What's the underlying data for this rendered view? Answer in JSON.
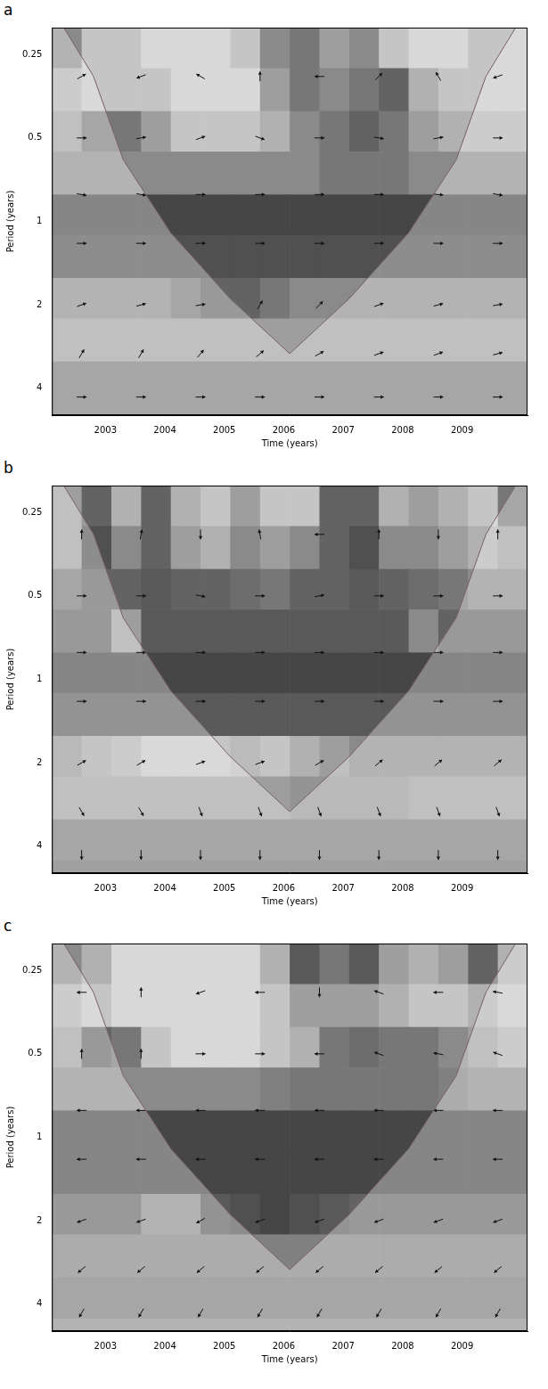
{
  "chart_data": [
    {
      "type": "heatmap",
      "panel": "a",
      "x_label": "Time (years)",
      "y_label": "Period (years)",
      "xlim": [
        2002.1,
        2010.1
      ],
      "xticks": [
        2003,
        2004,
        2005,
        2006,
        2007,
        2008,
        2009
      ],
      "ylim": [
        0.2,
        5
      ],
      "yticks": [
        0.25,
        0.5,
        1,
        2,
        4
      ],
      "log": "y",
      "grid": false,
      "time_edges": [
        2002.1,
        2002.6,
        2003.1,
        2003.6,
        2004.1,
        2004.6,
        2005.1,
        2005.6,
        2006.1,
        2006.6,
        2007.1,
        2007.6,
        2008.1,
        2008.6,
        2009.1,
        2009.6,
        2010.1
      ],
      "period_edges": [
        0.2,
        0.28,
        0.4,
        0.56,
        0.8,
        1.12,
        1.6,
        2.24,
        3.2,
        4.5,
        5
      ],
      "cells": [
        [
          0.6,
          0.3,
          0.3,
          0.2,
          0.2,
          0.2,
          0.3,
          0.6,
          0.7,
          0.5,
          0.6,
          0.3,
          0.2,
          0.2,
          0.3,
          0.3
        ],
        [
          0.4,
          0.3,
          0.3,
          0.3,
          0.2,
          0.2,
          0.2,
          0.5,
          0.7,
          0.6,
          0.7,
          0.8,
          0.4,
          0.3,
          0.3,
          0.3
        ],
        [
          0.5,
          0.7,
          0.7,
          0.5,
          0.3,
          0.3,
          0.3,
          0.4,
          0.6,
          0.7,
          0.8,
          0.7,
          0.5,
          0.4,
          0.4,
          0.4
        ],
        [
          0.6,
          0.6,
          0.6,
          0.6,
          0.6,
          0.6,
          0.6,
          0.6,
          0.6,
          0.7,
          0.7,
          0.7,
          0.6,
          0.6,
          0.6,
          0.6
        ],
        [
          0.95,
          0.95,
          0.95,
          0.95,
          0.95,
          0.95,
          0.95,
          0.95,
          0.95,
          0.95,
          0.95,
          0.95,
          0.95,
          0.95,
          0.95,
          0.95
        ],
        [
          0.9,
          0.9,
          0.9,
          0.9,
          0.9,
          0.9,
          0.9,
          0.9,
          0.9,
          0.9,
          0.9,
          0.9,
          0.9,
          0.9,
          0.9,
          0.9
        ],
        [
          0.6,
          0.6,
          0.6,
          0.6,
          0.7,
          0.8,
          0.8,
          0.7,
          0.6,
          0.6,
          0.6,
          0.6,
          0.6,
          0.6,
          0.6,
          0.6
        ],
        [
          0.5,
          0.5,
          0.5,
          0.5,
          0.5,
          0.5,
          0.5,
          0.5,
          0.5,
          0.5,
          0.5,
          0.5,
          0.5,
          0.5,
          0.5,
          0.5
        ],
        [
          0.7,
          0.7,
          0.7,
          0.7,
          0.7,
          0.7,
          0.7,
          0.7,
          0.7,
          0.7,
          0.7,
          0.7,
          0.7,
          0.7,
          0.7,
          0.7
        ],
        [
          0.7,
          0.7,
          0.7,
          0.7,
          0.7,
          0.7,
          0.7,
          0.7,
          0.7,
          0.7,
          0.7,
          0.7,
          0.7,
          0.7,
          0.7,
          0.7
        ]
      ],
      "arrows": {
        "x": [
          2002.6,
          2003.6,
          2004.6,
          2005.6,
          2006.6,
          2007.6,
          2008.6,
          2009.6
        ],
        "period": [
          0.3,
          0.5,
          0.8,
          1.2,
          2,
          3,
          4.3
        ],
        "angle": [
          [
            30,
            200,
            150,
            90,
            180,
            45,
            120,
            200
          ],
          [
            0,
            10,
            20,
            340,
            0,
            350,
            10,
            0
          ],
          [
            350,
            350,
            0,
            0,
            0,
            0,
            355,
            350
          ],
          [
            0,
            0,
            0,
            0,
            0,
            0,
            0,
            0
          ],
          [
            20,
            15,
            10,
            60,
            45,
            20,
            15,
            10
          ],
          [
            60,
            60,
            50,
            40,
            30,
            20,
            20,
            15
          ],
          [
            0,
            0,
            0,
            0,
            0,
            0,
            0,
            0
          ]
        ]
      },
      "cone_of_influence": {
        "x": [
          2002.3,
          2002.8,
          2003.3,
          2004.1,
          2005.1,
          2006.1,
          2007.1,
          2008.1,
          2008.9,
          2009.4,
          2009.9
        ],
        "period": [
          0.2,
          0.3,
          0.6,
          1.1,
          1.9,
          3.0,
          1.9,
          1.1,
          0.6,
          0.3,
          0.2
        ]
      }
    },
    {
      "type": "heatmap",
      "panel": "b",
      "x_label": "Time (years)",
      "y_label": "Period (years)",
      "xlim": [
        2002.1,
        2010.1
      ],
      "xticks": [
        2003,
        2004,
        2005,
        2006,
        2007,
        2008,
        2009
      ],
      "ylim": [
        0.2,
        5
      ],
      "yticks": [
        0.25,
        0.5,
        1,
        2,
        4
      ],
      "log": "y",
      "grid": false,
      "time_edges": [
        2002.1,
        2002.6,
        2003.1,
        2003.6,
        2004.1,
        2004.6,
        2005.1,
        2005.6,
        2006.1,
        2006.6,
        2007.1,
        2007.6,
        2008.1,
        2008.6,
        2009.1,
        2009.6,
        2010.1
      ],
      "period_edges": [
        0.2,
        0.28,
        0.4,
        0.56,
        0.8,
        1.12,
        1.6,
        2.24,
        3.2,
        4.5,
        5
      ],
      "cells": [
        [
          0.5,
          0.8,
          0.4,
          0.8,
          0.4,
          0.3,
          0.5,
          0.3,
          0.3,
          0.8,
          0.8,
          0.4,
          0.5,
          0.4,
          0.3,
          0.7
        ],
        [
          0.5,
          0.9,
          0.6,
          0.8,
          0.5,
          0.4,
          0.6,
          0.5,
          0.6,
          0.8,
          0.9,
          0.6,
          0.6,
          0.5,
          0.4,
          0.5
        ],
        [
          0.7,
          0.8,
          0.8,
          0.85,
          0.8,
          0.8,
          0.75,
          0.7,
          0.8,
          0.8,
          0.85,
          0.8,
          0.75,
          0.7,
          0.6,
          0.6
        ],
        [
          0.8,
          0.8,
          0.5,
          0.85,
          0.85,
          0.85,
          0.85,
          0.85,
          0.85,
          0.85,
          0.85,
          0.85,
          0.6,
          0.8,
          0.8,
          0.8
        ],
        [
          0.95,
          0.95,
          0.95,
          0.95,
          0.95,
          0.95,
          0.95,
          0.95,
          0.95,
          0.95,
          0.95,
          0.95,
          0.95,
          0.95,
          0.95,
          0.95
        ],
        [
          0.85,
          0.85,
          0.85,
          0.85,
          0.85,
          0.85,
          0.85,
          0.85,
          0.85,
          0.85,
          0.85,
          0.85,
          0.85,
          0.85,
          0.85,
          0.85
        ],
        [
          0.55,
          0.45,
          0.4,
          0.3,
          0.3,
          0.3,
          0.35,
          0.3,
          0.4,
          0.5,
          0.6,
          0.6,
          0.6,
          0.6,
          0.6,
          0.6
        ],
        [
          0.5,
          0.5,
          0.5,
          0.5,
          0.5,
          0.5,
          0.5,
          0.5,
          0.55,
          0.55,
          0.55,
          0.55,
          0.5,
          0.5,
          0.5,
          0.5
        ],
        [
          0.7,
          0.7,
          0.7,
          0.7,
          0.7,
          0.7,
          0.7,
          0.7,
          0.7,
          0.7,
          0.7,
          0.7,
          0.7,
          0.7,
          0.7,
          0.7
        ],
        [
          0.75,
          0.75,
          0.75,
          0.75,
          0.75,
          0.75,
          0.75,
          0.75,
          0.75,
          0.75,
          0.75,
          0.75,
          0.75,
          0.75,
          0.75,
          0.75
        ]
      ],
      "arrows": {
        "x": [
          2002.6,
          2003.6,
          2004.6,
          2005.6,
          2006.6,
          2007.6,
          2008.6,
          2009.6
        ],
        "period": [
          0.3,
          0.5,
          0.8,
          1.2,
          2,
          3,
          4.3
        ],
        "angle": [
          [
            90,
            80,
            270,
            100,
            180,
            90,
            270,
            90
          ],
          [
            0,
            0,
            350,
            0,
            10,
            0,
            0,
            0
          ],
          [
            0,
            0,
            0,
            0,
            0,
            0,
            0,
            0
          ],
          [
            0,
            0,
            0,
            0,
            0,
            0,
            0,
            0
          ],
          [
            30,
            30,
            20,
            20,
            30,
            40,
            40,
            40
          ],
          [
            300,
            300,
            290,
            290,
            290,
            290,
            290,
            290
          ],
          [
            270,
            270,
            270,
            270,
            270,
            270,
            270,
            270
          ]
        ]
      },
      "cone_of_influence": {
        "x": [
          2002.3,
          2002.8,
          2003.3,
          2004.1,
          2005.1,
          2006.1,
          2007.1,
          2008.1,
          2008.9,
          2009.4,
          2009.9
        ],
        "period": [
          0.2,
          0.3,
          0.6,
          1.1,
          1.9,
          3.0,
          1.9,
          1.1,
          0.6,
          0.3,
          0.2
        ]
      }
    },
    {
      "type": "heatmap",
      "panel": "c",
      "x_label": "Time (years)",
      "y_label": "Period (years)",
      "xlim": [
        2002.1,
        2010.1
      ],
      "xticks": [
        2003,
        2004,
        2005,
        2006,
        2007,
        2008,
        2009
      ],
      "ylim": [
        0.2,
        5
      ],
      "yticks": [
        0.25,
        0.5,
        1,
        2,
        4
      ],
      "log": "y",
      "grid": false,
      "time_edges": [
        2002.1,
        2002.6,
        2003.1,
        2003.6,
        2004.1,
        2004.6,
        2005.1,
        2005.6,
        2006.1,
        2006.6,
        2007.1,
        2007.6,
        2008.1,
        2008.6,
        2009.1,
        2009.6,
        2010.1
      ],
      "period_edges": [
        0.2,
        0.28,
        0.4,
        0.56,
        0.8,
        1.12,
        1.6,
        2.24,
        3.2,
        4.5,
        5
      ],
      "cells": [
        [
          0.6,
          0.4,
          0.2,
          0.2,
          0.2,
          0.2,
          0.2,
          0.4,
          0.85,
          0.7,
          0.85,
          0.5,
          0.4,
          0.5,
          0.8,
          0.4
        ],
        [
          0.4,
          0.3,
          0.2,
          0.2,
          0.2,
          0.2,
          0.2,
          0.3,
          0.5,
          0.5,
          0.5,
          0.4,
          0.3,
          0.3,
          0.4,
          0.3
        ],
        [
          0.5,
          0.8,
          0.7,
          0.3,
          0.2,
          0.2,
          0.2,
          0.3,
          0.4,
          0.7,
          0.75,
          0.7,
          0.7,
          0.6,
          0.5,
          0.4
        ],
        [
          0.6,
          0.6,
          0.6,
          0.6,
          0.6,
          0.6,
          0.6,
          0.65,
          0.7,
          0.7,
          0.7,
          0.7,
          0.7,
          0.65,
          0.6,
          0.6
        ],
        [
          0.95,
          0.95,
          0.95,
          0.95,
          0.95,
          0.95,
          0.95,
          0.95,
          0.95,
          0.95,
          0.95,
          0.95,
          0.95,
          0.95,
          0.95,
          0.95
        ],
        [
          0.95,
          0.95,
          0.95,
          0.95,
          0.95,
          0.95,
          0.95,
          0.95,
          0.95,
          0.95,
          0.95,
          0.95,
          0.95,
          0.95,
          0.95,
          0.95
        ],
        [
          0.8,
          0.8,
          0.8,
          0.6,
          0.6,
          0.85,
          0.9,
          0.95,
          0.9,
          0.85,
          0.8,
          0.8,
          0.8,
          0.8,
          0.8,
          0.8
        ],
        [
          0.65,
          0.65,
          0.65,
          0.65,
          0.65,
          0.65,
          0.65,
          0.65,
          0.65,
          0.65,
          0.65,
          0.65,
          0.65,
          0.65,
          0.65,
          0.65
        ],
        [
          0.7,
          0.7,
          0.7,
          0.7,
          0.7,
          0.7,
          0.7,
          0.7,
          0.7,
          0.7,
          0.7,
          0.7,
          0.7,
          0.7,
          0.7,
          0.7
        ],
        [
          0.6,
          0.6,
          0.6,
          0.6,
          0.6,
          0.6,
          0.6,
          0.6,
          0.6,
          0.6,
          0.6,
          0.6,
          0.6,
          0.6,
          0.6,
          0.6
        ]
      ],
      "arrows": {
        "x": [
          2002.6,
          2003.6,
          2004.6,
          2005.6,
          2006.6,
          2007.6,
          2008.6,
          2009.6
        ],
        "period": [
          0.3,
          0.5,
          0.8,
          1.2,
          2,
          3,
          4.3
        ],
        "angle": [
          [
            180,
            90,
            200,
            180,
            270,
            160,
            180,
            170
          ],
          [
            90,
            90,
            0,
            0,
            180,
            160,
            170,
            160
          ],
          [
            180,
            180,
            180,
            180,
            180,
            180,
            180,
            180
          ],
          [
            180,
            180,
            180,
            180,
            180,
            180,
            180,
            180
          ],
          [
            200,
            200,
            210,
            200,
            200,
            200,
            200,
            200
          ],
          [
            220,
            220,
            220,
            220,
            220,
            220,
            220,
            220
          ],
          [
            240,
            240,
            240,
            240,
            240,
            240,
            240,
            240
          ]
        ]
      },
      "cone_of_influence": {
        "x": [
          2002.3,
          2002.8,
          2003.3,
          2004.1,
          2005.1,
          2006.1,
          2007.1,
          2008.1,
          2008.9,
          2009.4,
          2009.9
        ],
        "period": [
          0.2,
          0.3,
          0.6,
          1.1,
          1.9,
          3.0,
          1.9,
          1.1,
          0.6,
          0.3,
          0.2
        ]
      }
    }
  ]
}
